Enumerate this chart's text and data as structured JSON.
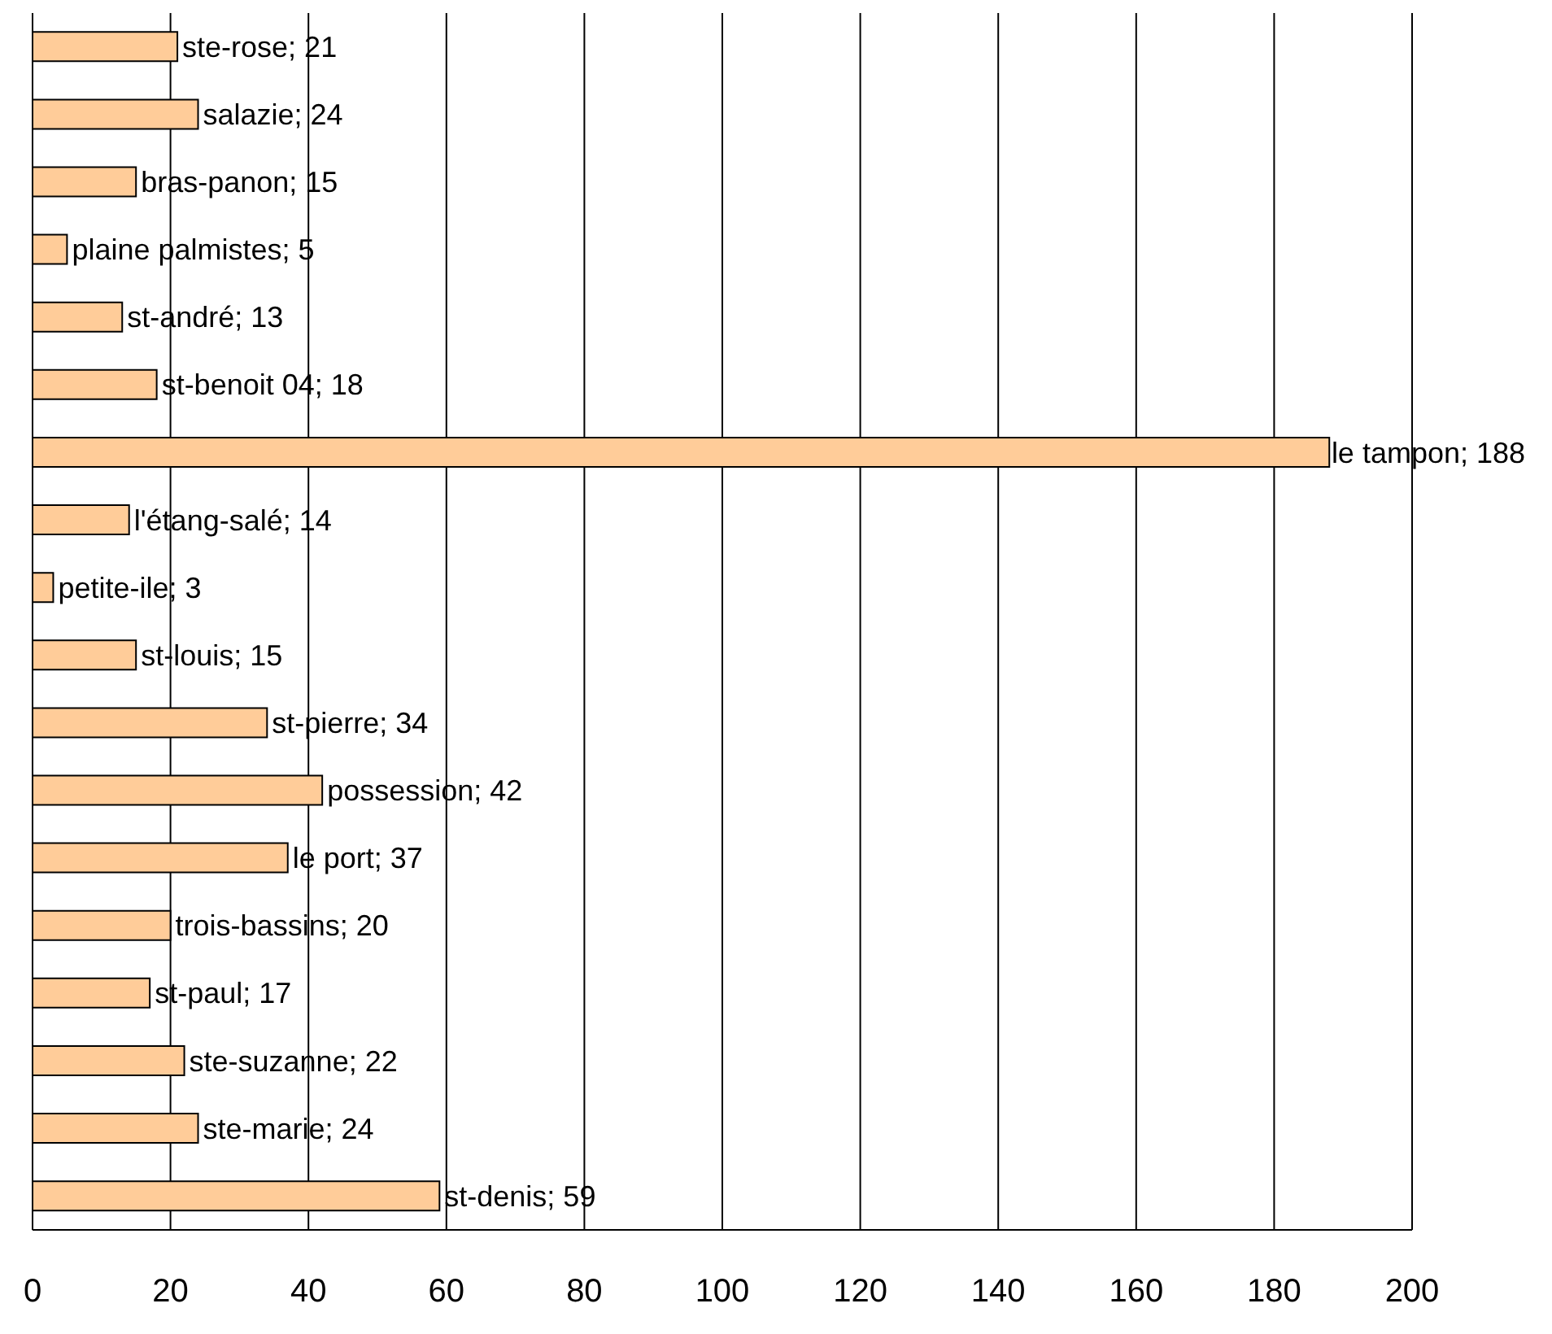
{
  "chart_data": {
    "type": "bar",
    "orientation": "horizontal",
    "categories": [
      null,
      null,
      null,
      null,
      null,
      null,
      null,
      null,
      null,
      null,
      null,
      null,
      null,
      null,
      null,
      null,
      null,
      null
    ],
    "values": [
      21,
      24,
      15,
      5,
      13,
      18,
      188,
      14,
      3,
      15,
      34,
      42,
      37,
      20,
      17,
      22,
      24,
      59
    ],
    "value_labels": [
      "ste-rose; 21",
      "salazie; 24",
      "bras-panon; 15",
      "plaine palmistes; 5",
      "st-andré; 13",
      "st-benoit 04; 18",
      "le tampon; 188",
      "l'étang-salé; 14",
      "petite-ile; 3",
      "st-louis; 15",
      "st-pierre; 34",
      "possession; 42",
      "le port; 37",
      "trois-bassins; 20",
      "st-paul; 17",
      "ste-suzanne; 22",
      "ste-marie; 24",
      "st-denis; 59"
    ],
    "color": "#ffcc99",
    "xlim": [
      0,
      200
    ],
    "xticks": [
      0,
      20,
      40,
      60,
      80,
      100,
      120,
      140,
      160,
      180,
      200
    ],
    "grid": "x",
    "legend": false
  }
}
